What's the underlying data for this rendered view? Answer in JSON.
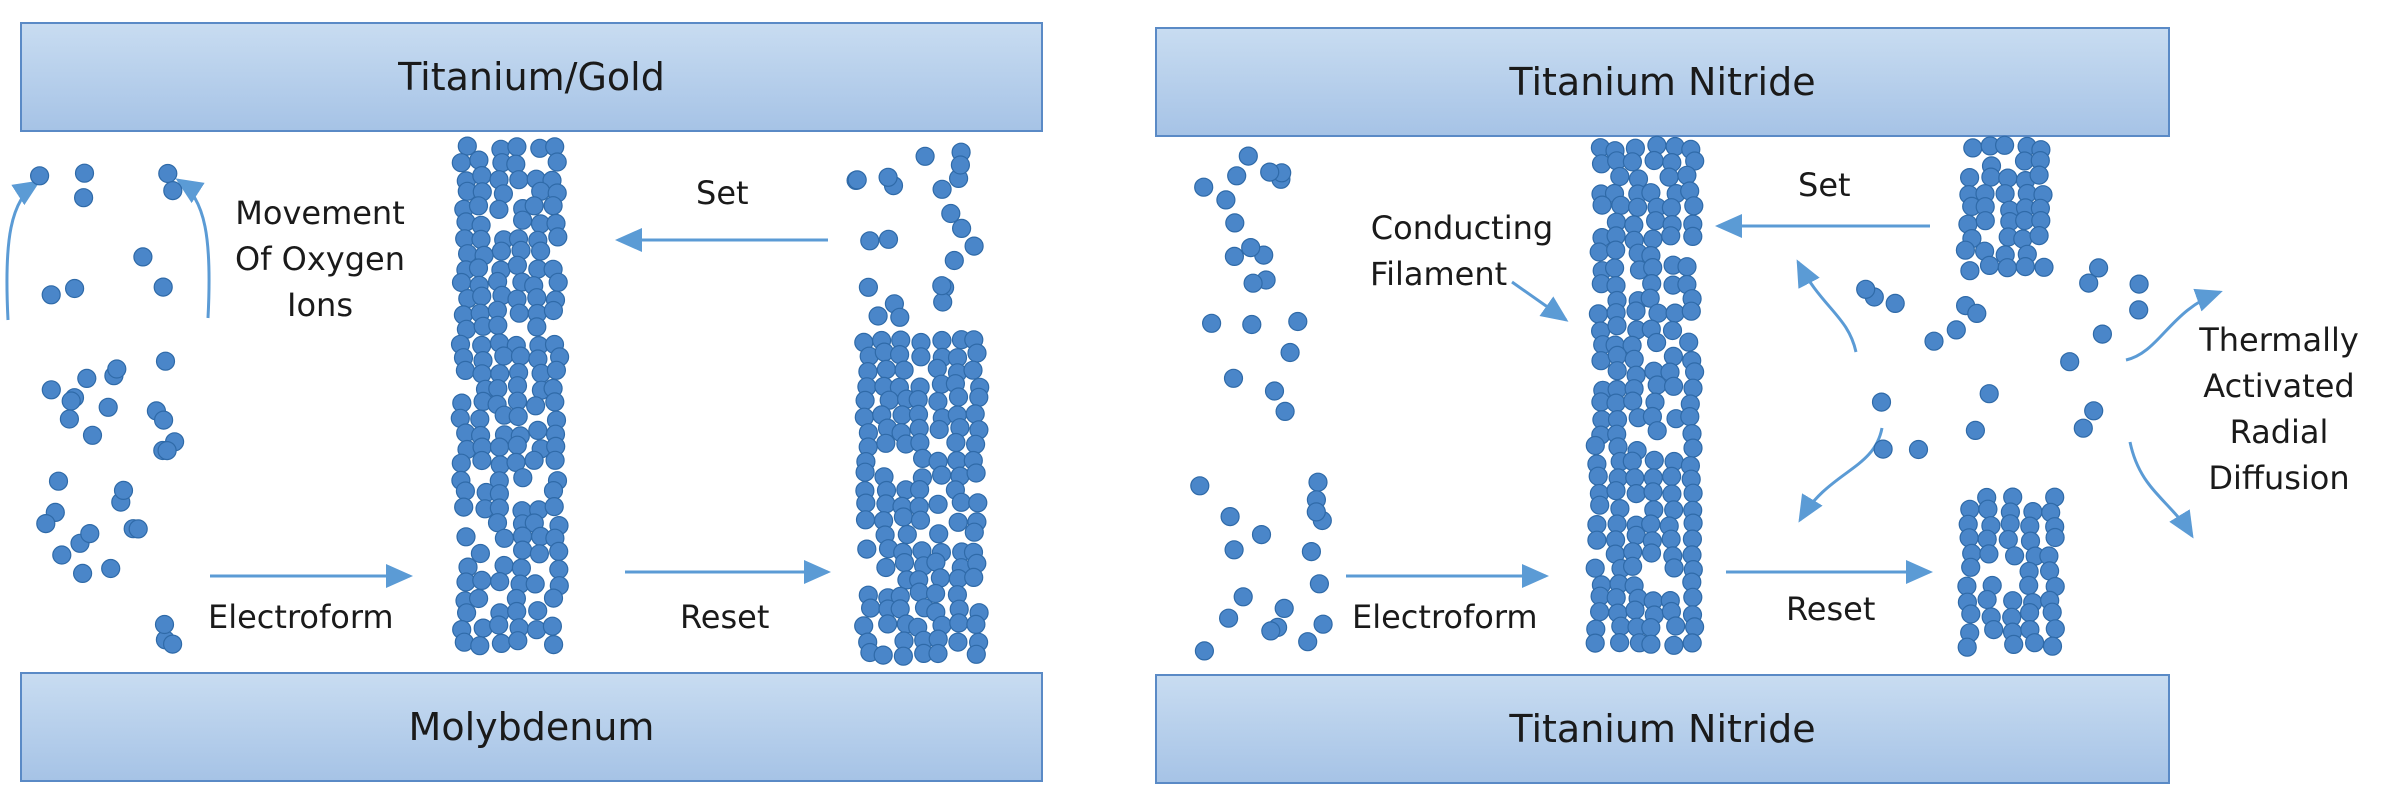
{
  "left_panel": {
    "top_electrode": "Titanium/Gold",
    "bottom_electrode": "Molybdenum",
    "movement_label": [
      "Movement",
      "Of Oxygen",
      "Ions"
    ],
    "electroform_label": "Electroform",
    "set_label": "Set",
    "reset_label": "Reset"
  },
  "right_panel": {
    "top_electrode": "Titanium Nitride",
    "bottom_electrode": "Titanium Nitride",
    "filament_label": [
      "Conducting",
      "Filament"
    ],
    "electroform_label": "Electroform",
    "set_label": "Set",
    "reset_label": "Reset",
    "diffusion_label": [
      "Thermally",
      "Activated",
      "Radial",
      "Diffusion"
    ]
  },
  "colors": {
    "electrode_fill": "#a6c3e6",
    "electrode_border": "#5a8ac6",
    "ion": "#4a86c9",
    "ion_border": "#2f6aa8",
    "arrow": "#5b9bd5"
  }
}
